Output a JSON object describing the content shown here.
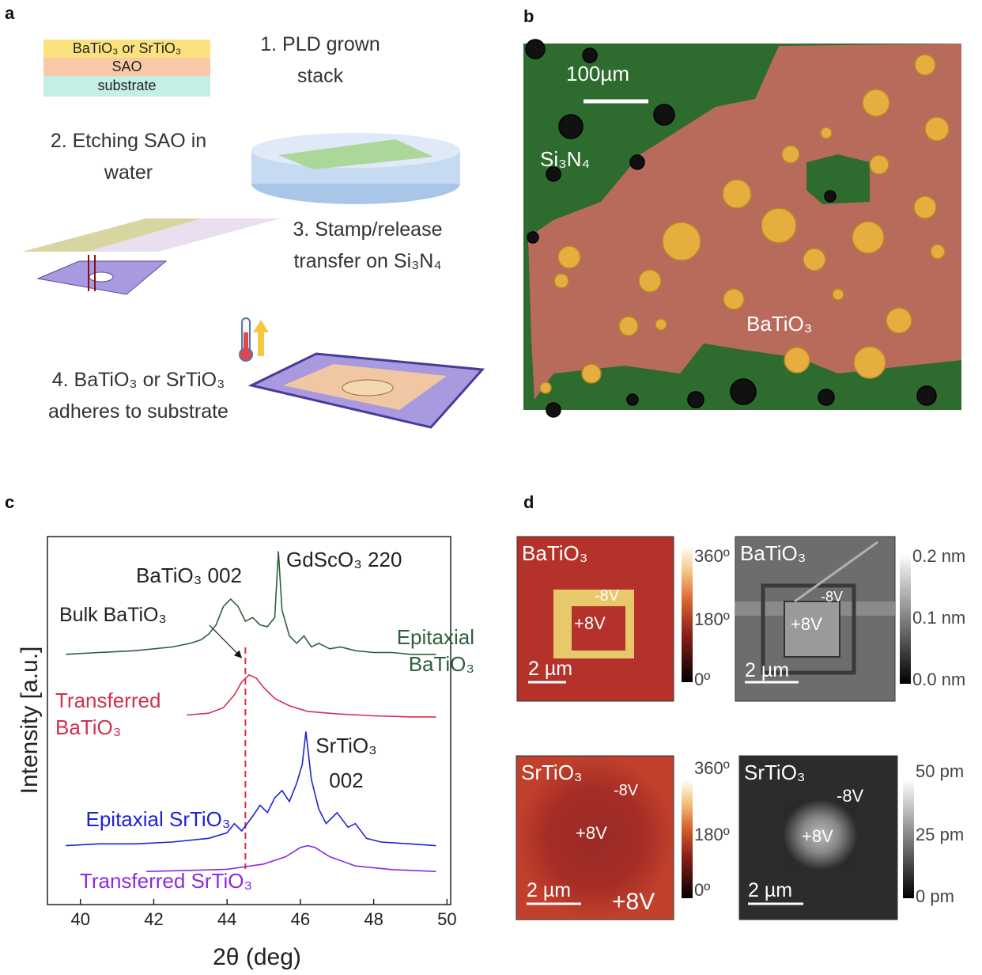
{
  "panels": {
    "a": {
      "label": "a",
      "stack_layers": [
        "BaTiO₃ or SrTiO₃",
        "SAO",
        "substrate"
      ],
      "steps": [
        "1. PLD grown stack",
        "2. Etching SAO in water",
        "3. Stamp/release transfer on Si₃N₄",
        "4. BaTiO₃ or SrTiO₃ adheres to substrate"
      ]
    },
    "b": {
      "label": "b",
      "scale_bar": "100µm",
      "labels": [
        "Si₃N₄",
        "BaTiO₃"
      ]
    },
    "c": {
      "label": "c"
    },
    "d": {
      "label": "d",
      "images": [
        {
          "title": "BaTiO₃",
          "labels": [
            "-8V",
            "+8V"
          ],
          "scale_bar": "2 µm",
          "colorbar": [
            "360º",
            "180º",
            "0º"
          ]
        },
        {
          "title": "BaTiO₃",
          "labels": [
            "-8V",
            "+8V"
          ],
          "scale_bar": "2 µm",
          "colorbar": [
            "0.2 nm",
            "0.1 nm",
            "0.0 nm"
          ]
        },
        {
          "title": "SrTiO₃",
          "labels": [
            "-8V",
            "+8V",
            "+8V"
          ],
          "scale_bar": "2 µm",
          "colorbar": [
            "360º",
            "180º",
            "0º"
          ]
        },
        {
          "title": "SrTiO₃",
          "labels": [
            "-8V",
            "+8V"
          ],
          "scale_bar": "2 µm",
          "colorbar": [
            "50 pm",
            "25 pm",
            "0 pm"
          ]
        }
      ]
    }
  },
  "chart_data": {
    "type": "line",
    "xlabel": "2θ (deg)",
    "ylabel": "Intensity [a.u.]",
    "xlim": [
      39.1,
      50.1
    ],
    "xticks": [
      40,
      42,
      44,
      46,
      48,
      50
    ],
    "ylim": [
      0,
      100
    ],
    "annotations": [
      "BaTiO₃ 002",
      "GdScO₃ 220",
      "SrTiO₃ 002"
    ],
    "reference_line": {
      "label": "Bulk BaTiO₃",
      "x": 44.5,
      "color": "#e0303a"
    },
    "series": [
      {
        "name": "Epitaxial BaTiO₃",
        "color": "#2f5f3c",
        "x": [
          39.6,
          40.5,
          41.5,
          42.5,
          43.0,
          43.3,
          43.5,
          43.7,
          43.9,
          44.1,
          44.3,
          44.5,
          44.7,
          44.9,
          45.1,
          45.3,
          45.4,
          45.5,
          45.7,
          45.9,
          46.1,
          46.3,
          46.5,
          46.8,
          47.1,
          47.5,
          48.0,
          48.5,
          49.0,
          49.7
        ],
        "values": [
          68,
          68.5,
          69,
          70,
          71,
          72,
          73.5,
          76,
          81,
          83,
          81,
          77,
          78,
          76,
          75.5,
          78,
          96,
          80,
          73,
          71,
          73,
          70,
          71,
          69.5,
          70,
          69,
          68.5,
          68.5,
          68,
          68
        ]
      },
      {
        "name": "Transferred BaTiO₃",
        "color": "#d0314f",
        "x": [
          42.9,
          43.5,
          43.9,
          44.2,
          44.4,
          44.6,
          44.8,
          45.0,
          45.3,
          45.7,
          46.2,
          47.0,
          48.0,
          49.0,
          49.7
        ],
        "values": [
          51.5,
          52,
          53.5,
          57,
          60.5,
          62.4,
          61.5,
          59,
          56,
          54,
          52.5,
          51.8,
          51.3,
          51,
          51
        ]
      },
      {
        "name": "Epitaxial SrTiO₃",
        "color": "#1f22d0",
        "x": [
          39.6,
          40.5,
          41.5,
          42.5,
          43.5,
          44.0,
          44.2,
          44.4,
          44.7,
          44.9,
          45.1,
          45.3,
          45.5,
          45.7,
          45.9,
          46.05,
          46.15,
          46.3,
          46.5,
          46.7,
          47.0,
          47.3,
          47.5,
          47.8,
          48.2,
          49.0,
          49.7
        ],
        "values": [
          16,
          16.5,
          16.5,
          17,
          18,
          19.5,
          22,
          20,
          24,
          27,
          25,
          29,
          31,
          28,
          33,
          38,
          47,
          34,
          26,
          22,
          25,
          21,
          22,
          18,
          17,
          16.5,
          16
        ]
      },
      {
        "name": "Transferred SrTiO₃",
        "color": "#8a2be2",
        "x": [
          41.8,
          43.0,
          44.0,
          45.0,
          45.6,
          46.0,
          46.2,
          46.4,
          46.8,
          47.5,
          48.5,
          49.7
        ],
        "values": [
          9,
          9.3,
          9.6,
          11,
          13,
          15.5,
          16,
          15.5,
          13,
          10.5,
          9.5,
          9
        ]
      }
    ]
  }
}
